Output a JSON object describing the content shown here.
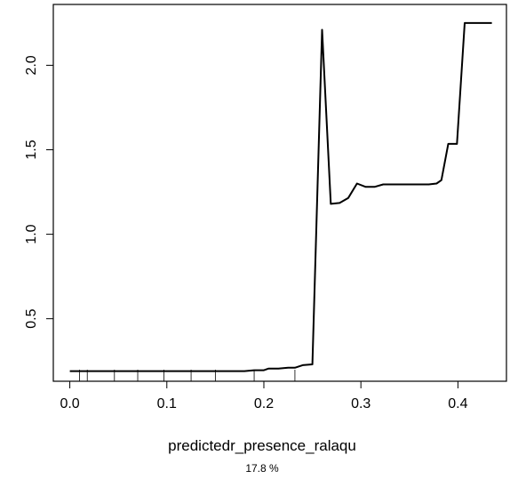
{
  "chart_data": {
    "type": "line",
    "xlabel": "predictedr_presence_ralaqu",
    "subtitle": "17.8 %",
    "xlim": [
      -0.017,
      0.45
    ],
    "ylim": [
      0.13,
      2.36
    ],
    "x_ticks": [
      0.0,
      0.1,
      0.2,
      0.3,
      0.4
    ],
    "x_tick_labels": [
      "0.0",
      "0.1",
      "0.2",
      "0.3",
      "0.4"
    ],
    "y_ticks": [
      0.5,
      1.0,
      1.5,
      2.0
    ],
    "y_tick_labels": [
      "0.5",
      "1.0",
      "1.5",
      "2.0"
    ],
    "grid": false,
    "series": [
      {
        "x": [
          0.0,
          0.02,
          0.04,
          0.06,
          0.08,
          0.1,
          0.12,
          0.14,
          0.16,
          0.18,
          0.19,
          0.2,
          0.205,
          0.215,
          0.225,
          0.232,
          0.24,
          0.25,
          0.26,
          0.269,
          0.278,
          0.287,
          0.296,
          0.305,
          0.314,
          0.323,
          0.332,
          0.35,
          0.36,
          0.37,
          0.378,
          0.383,
          0.39,
          0.395,
          0.399,
          0.407,
          0.435
        ],
        "y": [
          0.19,
          0.19,
          0.19,
          0.19,
          0.19,
          0.19,
          0.19,
          0.19,
          0.19,
          0.19,
          0.195,
          0.195,
          0.205,
          0.205,
          0.21,
          0.21,
          0.225,
          0.23,
          2.21,
          1.18,
          1.185,
          1.215,
          1.3,
          1.28,
          1.28,
          1.295,
          1.295,
          1.295,
          1.295,
          1.295,
          1.3,
          1.32,
          1.535,
          1.535,
          1.535,
          2.25,
          2.25
        ],
        "color": "#000000"
      }
    ],
    "rug": [
      0.01,
      0.018,
      0.046,
      0.07,
      0.097,
      0.125,
      0.15,
      0.19,
      0.232
    ]
  }
}
